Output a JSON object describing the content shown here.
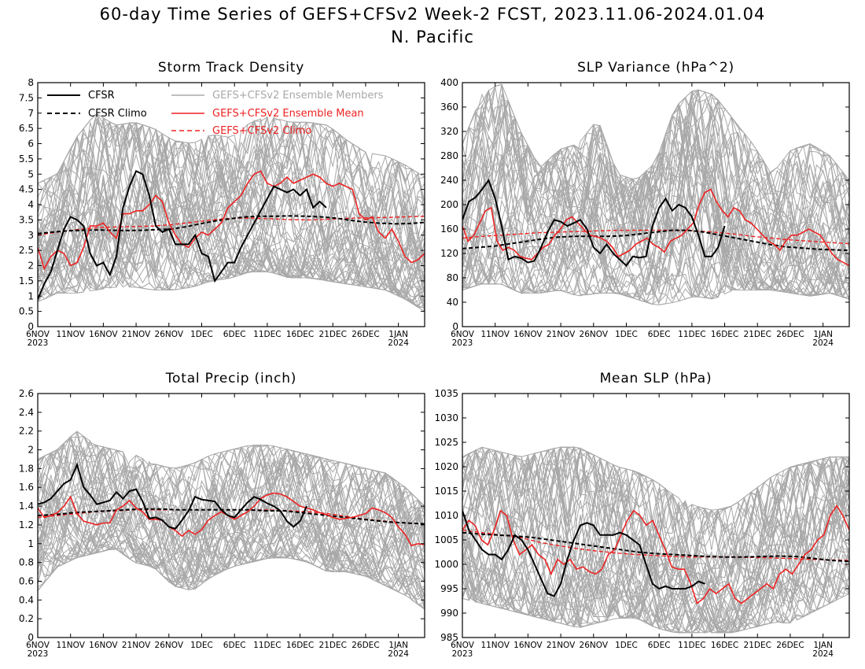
{
  "title": "60-day Time Series of GEFS+CFSv2 Week-2 FCST, 2023.11.06-2024.01.04",
  "subtitle": "N. Pacific",
  "colors": {
    "members": "#a8a8a8",
    "cfsr": "#000000",
    "ensemble_mean": "#ee2222"
  },
  "x_ticks": [
    "6NOV",
    "11NOV",
    "16NOV",
    "21NOV",
    "26NOV",
    "1DEC",
    "6DEC",
    "11DEC",
    "16DEC",
    "21DEC",
    "26DEC",
    "1JAN"
  ],
  "x_year_start": "2023",
  "x_year_end": "2024",
  "legend": {
    "cfsr": "CFSR",
    "cfsr_climo": "CFSR Climo",
    "members": "GEFS+CFSv2 Ensemble Members",
    "ens_mean": "GEFS+CFSv2 Ensemble Mean",
    "ens_climo": "GEFS+CFSv2 Climo"
  },
  "chart_data": [
    {
      "type": "line",
      "title": "Storm Track Density",
      "ylim": [
        0,
        8
      ],
      "yticks": [
        "0",
        "0.5",
        "1",
        "1.5",
        "2",
        "2.5",
        "3",
        "3.5",
        "4",
        "4.5",
        "5",
        "5.5",
        "6",
        "6.5",
        "7",
        "7.5",
        "8"
      ],
      "members_band": {
        "lower": [
          0.8,
          1.1,
          1.1,
          1.2,
          1.3,
          1.3,
          1.2,
          1.2,
          1.3,
          1.5,
          1.6,
          1.8,
          1.8,
          1.6,
          1.6,
          1.5,
          1.4,
          1.3,
          1.2,
          0.9,
          0.5
        ],
        "upper": [
          4.7,
          5.0,
          6.2,
          7.0,
          6.6,
          6.7,
          6.5,
          6.1,
          6.0,
          6.3,
          6.2,
          6.7,
          6.9,
          6.7,
          6.7,
          6.6,
          6.1,
          5.7,
          5.6,
          5.3,
          4.9
        ]
      },
      "series": [
        {
          "name": "CFSR",
          "start": 0,
          "values": [
            0.9,
            1.4,
            1.8,
            2.5,
            3.2,
            3.6,
            3.5,
            3.3,
            2.4,
            2.0,
            2.1,
            1.7,
            2.3,
            3.9,
            4.6,
            5.1,
            5.0,
            4.3,
            3.3,
            3.1,
            3.2,
            2.7,
            2.7,
            2.7,
            3.0,
            2.4,
            2.3,
            1.5,
            1.8,
            2.1,
            2.1,
            2.6,
            3.0,
            3.4,
            3.8,
            4.2,
            4.6,
            4.5,
            4.4,
            4.5,
            4.3,
            4.5,
            3.9,
            4.1,
            3.9
          ]
        },
        {
          "name": "CFSR Climo",
          "start": 0,
          "values": [
            3.05,
            3.1,
            3.14,
            3.16,
            3.17,
            3.16,
            3.15,
            3.16,
            3.18,
            3.2,
            3.28,
            3.38,
            3.47,
            3.54,
            3.6,
            3.62,
            3.62,
            3.63,
            3.62,
            3.6,
            3.56,
            3.49,
            3.43,
            3.39,
            3.37,
            3.38,
            3.42
          ]
        },
        {
          "name": "GEFS+CFSv2 Ensemble Mean",
          "start": 0,
          "values": [
            2.6,
            1.9,
            2.3,
            2.5,
            2.4,
            2.0,
            2.1,
            2.6,
            3.3,
            3.3,
            3.4,
            3.1,
            2.9,
            3.7,
            3.7,
            3.8,
            3.8,
            4.0,
            4.3,
            4.1,
            3.4,
            3.0,
            2.7,
            2.6,
            2.9,
            3.1,
            3.0,
            3.2,
            3.4,
            3.9,
            4.1,
            4.3,
            4.7,
            5.0,
            5.1,
            4.7,
            4.6,
            4.7,
            4.9,
            4.7,
            4.8,
            4.9,
            5.0,
            4.9,
            4.7,
            4.6,
            4.7,
            4.6,
            4.5,
            3.7,
            3.5,
            3.6,
            3.1,
            2.9,
            3.2,
            2.8,
            2.3,
            2.1,
            2.2,
            2.4
          ]
        },
        {
          "name": "GEFS+CFSv2 Climo",
          "start": 0,
          "values": [
            3.0,
            3.1,
            3.18,
            3.24,
            3.27,
            3.28,
            3.3,
            3.35,
            3.42,
            3.5,
            3.55,
            3.56,
            3.54,
            3.51,
            3.5,
            3.52,
            3.55,
            3.57,
            3.58,
            3.6,
            3.62
          ]
        }
      ]
    },
    {
      "type": "line",
      "title": "SLP Variance (hPa^2)",
      "ylim": [
        0,
        400
      ],
      "yticks": [
        "0",
        "40",
        "80",
        "120",
        "160",
        "200",
        "240",
        "280",
        "320",
        "360",
        "400"
      ],
      "members_band": {
        "lower": [
          60,
          70,
          70,
          55,
          55,
          60,
          50,
          55,
          55,
          45,
          35,
          40,
          50,
          45,
          60,
          60,
          60,
          55,
          50,
          55,
          45
        ],
        "upper": [
          300,
          380,
          400,
          320,
          260,
          290,
          300,
          340,
          250,
          240,
          270,
          360,
          390,
          380,
          340,
          300,
          250,
          290,
          300,
          280,
          240
        ]
      },
      "series": [
        {
          "name": "CFSR",
          "start": 0,
          "values": [
            175,
            205,
            212,
            225,
            240,
            210,
            165,
            110,
            115,
            112,
            105,
            108,
            130,
            155,
            175,
            172,
            165,
            170,
            175,
            160,
            130,
            120,
            135,
            120,
            110,
            100,
            115,
            113,
            115,
            165,
            195,
            210,
            190,
            200,
            195,
            180,
            150,
            115,
            115,
            130,
            165
          ]
        },
        {
          "name": "CFSR Climo",
          "start": 0,
          "values": [
            128,
            130,
            132,
            136,
            140,
            144,
            147,
            148,
            148,
            148,
            149,
            152,
            155,
            158,
            158,
            155,
            150,
            145,
            140,
            135,
            131,
            129,
            127,
            126,
            125
          ]
        },
        {
          "name": "GEFS+CFSv2 Ensemble Mean",
          "start": 0,
          "values": [
            165,
            140,
            150,
            170,
            190,
            195,
            140,
            125,
            130,
            125,
            115,
            112,
            110,
            120,
            130,
            135,
            150,
            160,
            175,
            180,
            170,
            160,
            150,
            148,
            145,
            140,
            130,
            115,
            120,
            125,
            135,
            140,
            145,
            135,
            130,
            122,
            140,
            145,
            150,
            160,
            170,
            200,
            220,
            225,
            205,
            190,
            180,
            195,
            190,
            175,
            170,
            160,
            150,
            140,
            135,
            125,
            140,
            150,
            150,
            155,
            160,
            155,
            150,
            135,
            120,
            110,
            105,
            100
          ]
        },
        {
          "name": "GEFS+CFSv2 Climo",
          "start": 0,
          "values": [
            145,
            148,
            150,
            152,
            154,
            155,
            156,
            157,
            158,
            158,
            158,
            158,
            157,
            155,
            152,
            148,
            145,
            142,
            140,
            138,
            136
          ]
        }
      ]
    },
    {
      "type": "line",
      "title": "Total Precip (inch)",
      "ylim": [
        0,
        2.6
      ],
      "yticks": [
        "0",
        "0.2",
        "0.4",
        "0.6",
        "0.8",
        "1",
        "1.2",
        "1.4",
        "1.6",
        "1.8",
        "2",
        "2.2",
        "2.4",
        "2.6"
      ],
      "members_band": {
        "lower": [
          0.5,
          0.75,
          0.85,
          0.9,
          0.95,
          0.8,
          0.75,
          0.55,
          0.5,
          0.65,
          0.75,
          0.8,
          0.85,
          0.85,
          0.8,
          0.7,
          0.7,
          0.65,
          0.55,
          0.45,
          0.3
        ],
        "upper": [
          1.9,
          2.0,
          2.2,
          2.05,
          2.0,
          1.95,
          1.85,
          1.8,
          1.85,
          1.95,
          2.0,
          2.05,
          2.05,
          2.0,
          1.95,
          1.9,
          1.85,
          1.8,
          1.75,
          1.6,
          1.4
        ]
      },
      "series": [
        {
          "name": "CFSR",
          "start": 0,
          "values": [
            1.42,
            1.44,
            1.48,
            1.56,
            1.64,
            1.68,
            1.84,
            1.6,
            1.52,
            1.42,
            1.44,
            1.46,
            1.55,
            1.48,
            1.56,
            1.58,
            1.45,
            1.27,
            1.28,
            1.25,
            1.18,
            1.16,
            1.25,
            1.35,
            1.5,
            1.47,
            1.46,
            1.45,
            1.36,
            1.3,
            1.28,
            1.36,
            1.44,
            1.5,
            1.47,
            1.43,
            1.4,
            1.35,
            1.24,
            1.18,
            1.24,
            1.4
          ]
        },
        {
          "name": "CFSR Climo",
          "start": 0,
          "values": [
            1.3,
            1.31,
            1.33,
            1.34,
            1.35,
            1.36,
            1.37,
            1.37,
            1.36,
            1.36,
            1.36,
            1.36,
            1.36,
            1.35,
            1.35,
            1.33,
            1.31,
            1.29,
            1.27,
            1.25,
            1.23,
            1.22,
            1.21
          ]
        },
        {
          "name": "GEFS+CFSv2 Ensemble Mean",
          "start": 0,
          "values": [
            1.38,
            1.28,
            1.3,
            1.33,
            1.4,
            1.5,
            1.32,
            1.24,
            1.22,
            1.2,
            1.22,
            1.22,
            1.36,
            1.4,
            1.46,
            1.38,
            1.34,
            1.26,
            1.26,
            1.25,
            1.18,
            1.14,
            1.08,
            1.14,
            1.1,
            1.15,
            1.25,
            1.3,
            1.34,
            1.3,
            1.26,
            1.3,
            1.34,
            1.4,
            1.48,
            1.52,
            1.54,
            1.53,
            1.5,
            1.45,
            1.4,
            1.38,
            1.36,
            1.33,
            1.31,
            1.28,
            1.26,
            1.27,
            1.28,
            1.3,
            1.32,
            1.38,
            1.36,
            1.33,
            1.28,
            1.18,
            1.1,
            0.98,
            1.0,
            0.99
          ]
        },
        {
          "name": "GEFS+CFSv2 Climo",
          "start": 0,
          "values": [
            1.28,
            1.3,
            1.32,
            1.34,
            1.35,
            1.36,
            1.36,
            1.36,
            1.36,
            1.36,
            1.36,
            1.36,
            1.36,
            1.35,
            1.34,
            1.32,
            1.29,
            1.26,
            1.24,
            1.22,
            1.21
          ]
        }
      ]
    },
    {
      "type": "line",
      "title": "Mean SLP (hPa)",
      "ylim": [
        985,
        1035
      ],
      "yticks": [
        "985",
        "990",
        "995",
        "1000",
        "1005",
        "1010",
        "1015",
        "1020",
        "1025",
        "1030",
        "1035"
      ],
      "members_band": {
        "lower": [
          993,
          992,
          991,
          990,
          989,
          988,
          987,
          988,
          989,
          989,
          987,
          986,
          986,
          986,
          986,
          987,
          988,
          988,
          990,
          992,
          994
        ],
        "upper": [
          1022,
          1024,
          1023,
          1022,
          1023,
          1024,
          1024,
          1022,
          1020,
          1019,
          1017,
          1014,
          1012,
          1011,
          1012,
          1015,
          1018,
          1020,
          1021,
          1022,
          1022
        ]
      },
      "series": [
        {
          "name": "CFSR",
          "start": 0,
          "values": [
            1011,
            1007,
            1005,
            1003,
            1002,
            1002,
            1001,
            1003,
            1006,
            1005,
            1003,
            1000,
            997,
            994,
            993.5,
            996,
            1001,
            1005,
            1008,
            1008.5,
            1008,
            1006,
            1006,
            1006,
            1006.5,
            1006,
            1005,
            1004,
            1000,
            996,
            995,
            995.5,
            995,
            995,
            995,
            995.5,
            996.5,
            996
          ]
        },
        {
          "name": "CFSR Climo",
          "start": 0,
          "values": [
            1006.5,
            1006.2,
            1006,
            1005.8,
            1005.5,
            1005,
            1004.5,
            1004,
            1003.5,
            1003,
            1002.5,
            1002.2,
            1002.0,
            1001.8,
            1001.6,
            1001.5,
            1001.5,
            1001.6,
            1001.7,
            1001.6,
            1001.2,
            1000.8,
            1000.6
          ]
        },
        {
          "name": "GEFS+CFSv2 Ensemble Mean",
          "start": 0,
          "values": [
            1007,
            1009,
            1008,
            1005,
            1004,
            1007,
            1011,
            1010,
            1005,
            1002,
            1003,
            1004,
            1002,
            1001,
            998,
            1001,
            1000,
            1001,
            999,
            999.5,
            998.5,
            998,
            999,
            1002,
            1003,
            1006,
            1009,
            1011,
            1010,
            1008,
            1009,
            1006,
            1003,
            999.5,
            999,
            999,
            996,
            992,
            993,
            995,
            994,
            995,
            996,
            993,
            992,
            993,
            994,
            995,
            996,
            995,
            998,
            999,
            998,
            1000,
            1002,
            1003,
            1005,
            1006,
            1010,
            1012,
            1010,
            1007
          ]
        },
        {
          "name": "GEFS+CFSv2 Climo",
          "start": 0,
          "values": [
            1007,
            1006.5,
            1006,
            1005.5,
            1004.5,
            1003.8,
            1003.2,
            1002.7,
            1002.3,
            1002.0,
            1001.8,
            1001.6,
            1001.5,
            1001.5,
            1001.5,
            1001.4,
            1001.3,
            1001.2,
            1001.0,
            1000.9,
            1000.8
          ]
        }
      ]
    }
  ]
}
